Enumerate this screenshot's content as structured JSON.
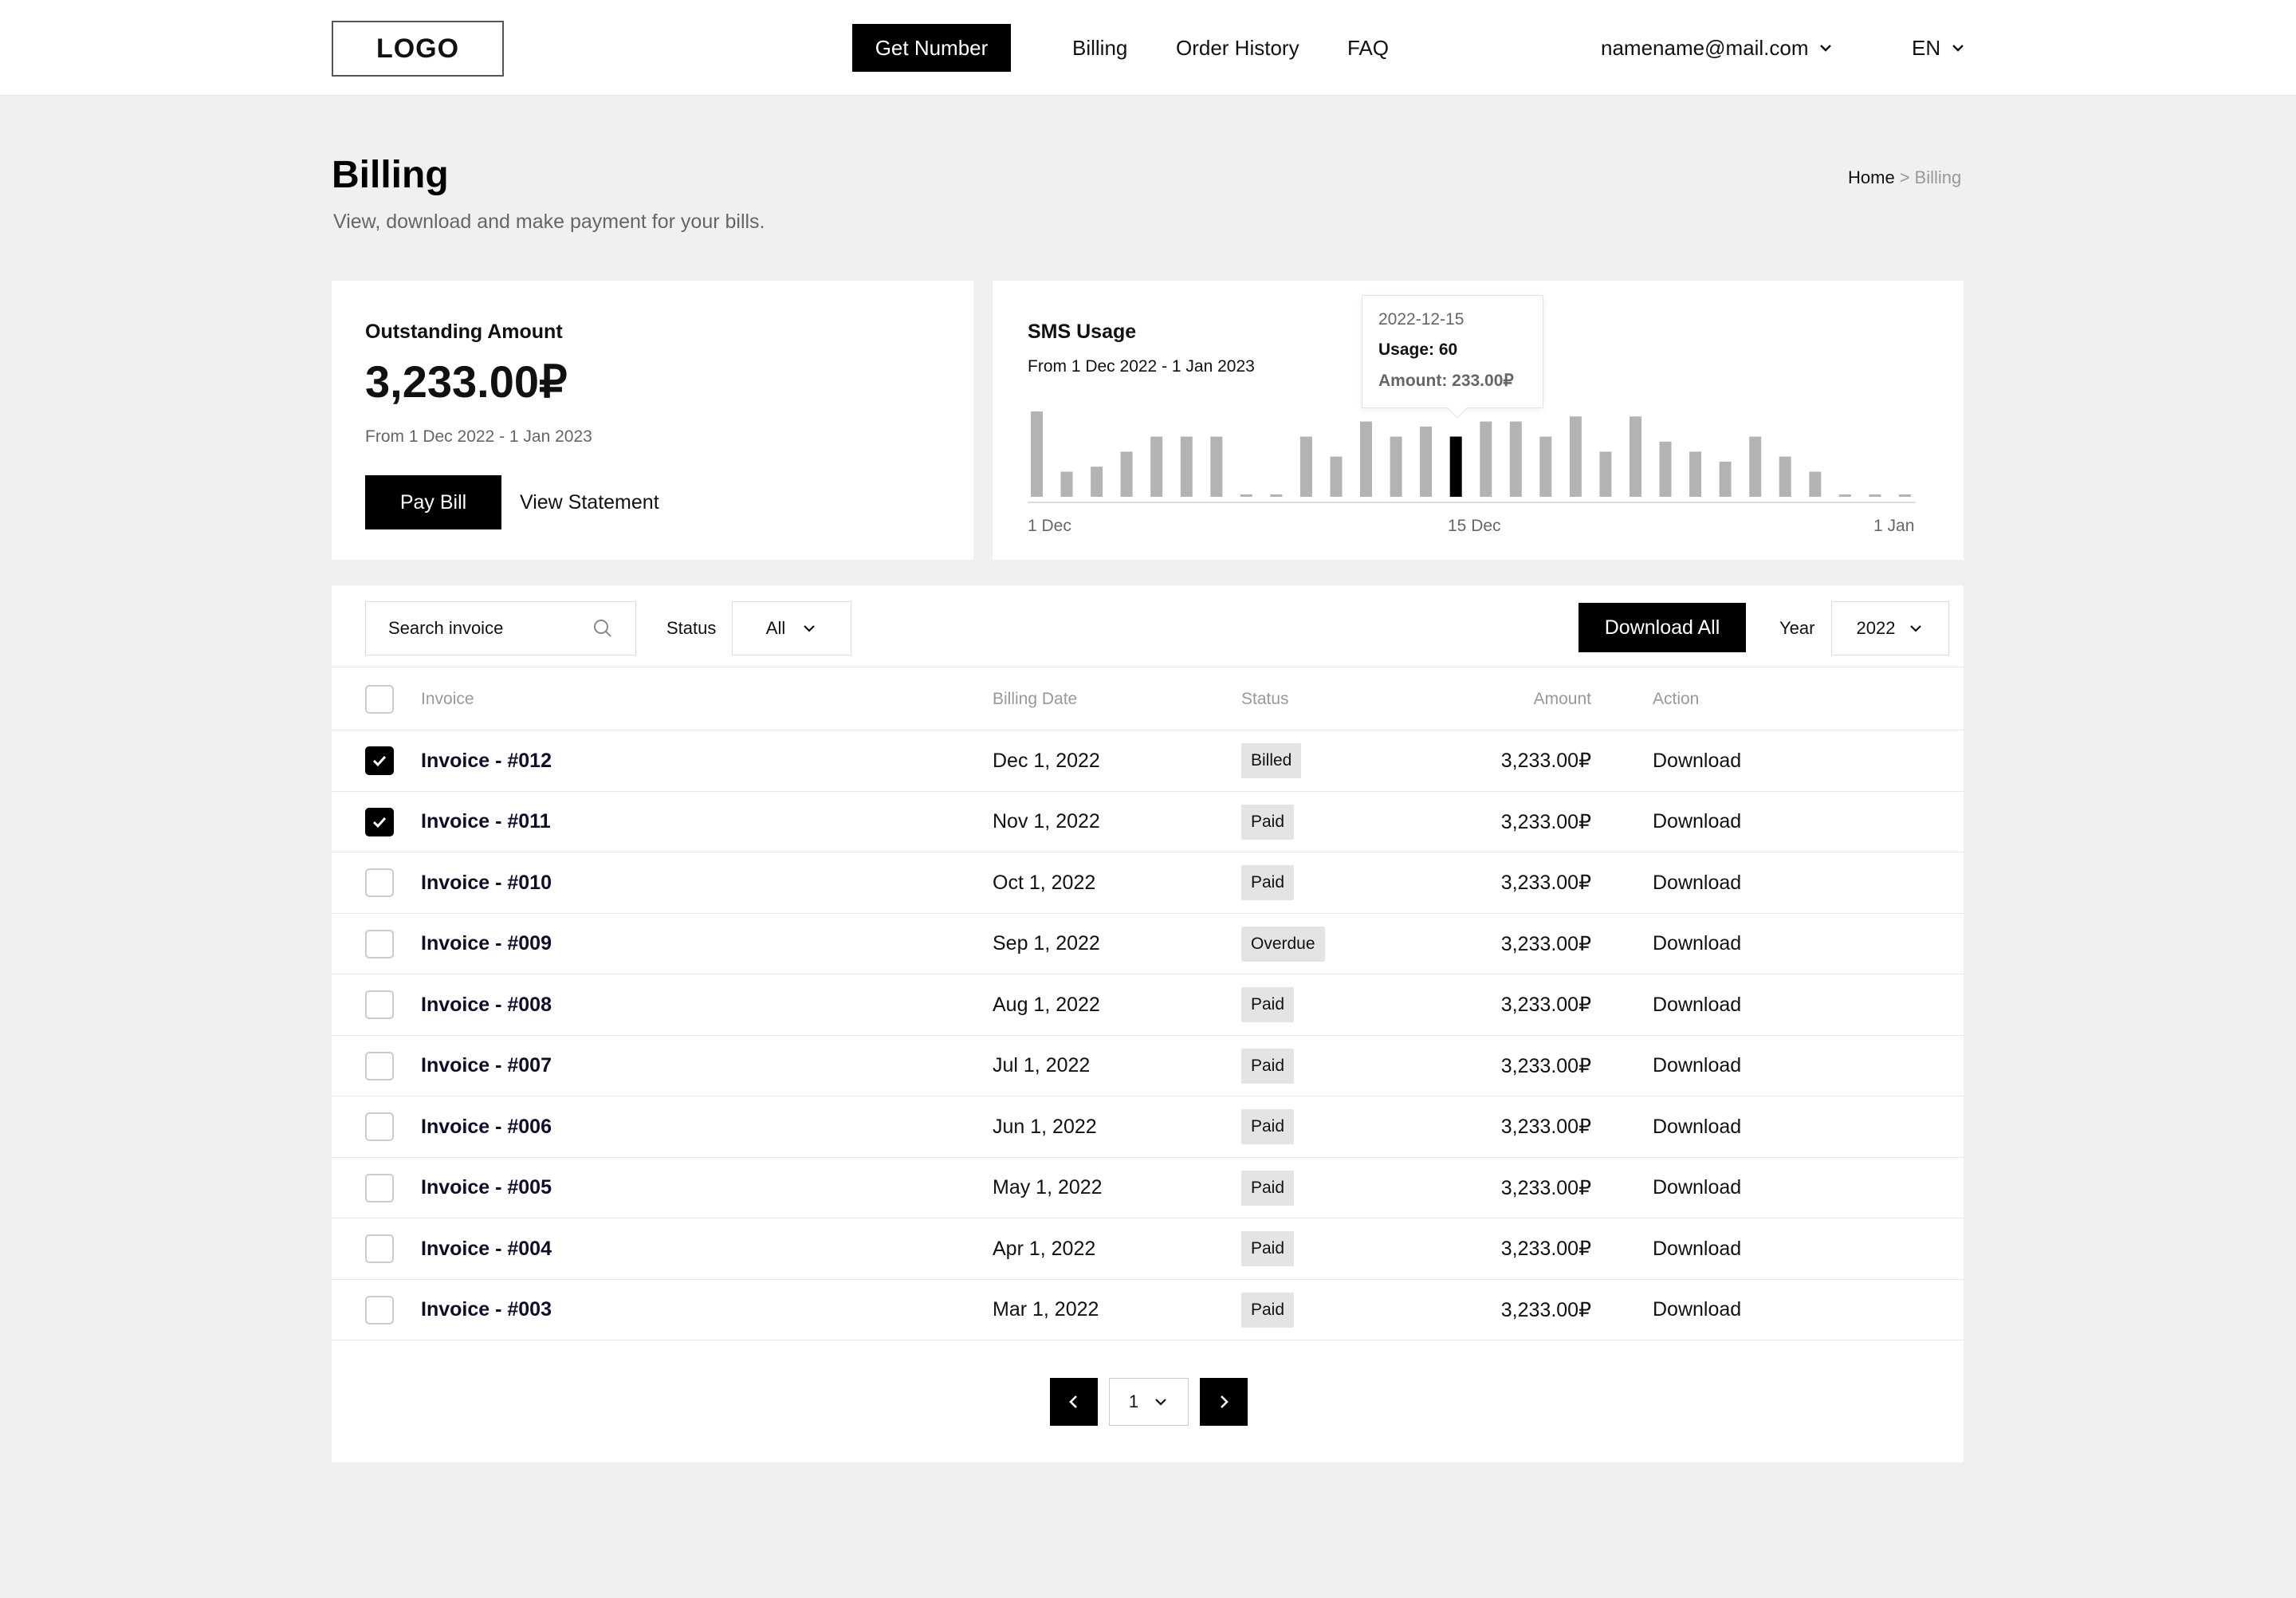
{
  "header": {
    "logo": "LOGO",
    "get_number": "Get Number",
    "nav": [
      "Billing",
      "Order History",
      "FAQ"
    ],
    "user_email": "namename@mail.com",
    "language": "EN"
  },
  "page": {
    "title": "Billing",
    "subtitle": "View, download and make payment for your bills.",
    "breadcrumb": {
      "home": "Home",
      "separator": ">",
      "current": "Billing"
    }
  },
  "outstanding": {
    "label": "Outstanding Amount",
    "amount": "3,233.00₽",
    "period": "From 1 Dec 2022 - 1 Jan 2023",
    "pay_button": "Pay Bill",
    "statement_link": "View Statement"
  },
  "sms_usage": {
    "title": "SMS Usage",
    "period": "From 1 Dec 2022 - 1 Jan 2023",
    "tooltip": {
      "date": "2022-12-15",
      "usage": "Usage: 60",
      "amount": "Amount: 233.00₽"
    },
    "x_labels": [
      "1 Dec",
      "15 Dec",
      "1 Jan"
    ]
  },
  "chart_data": {
    "type": "bar",
    "x": [
      "2022-12-01",
      "2022-12-02",
      "2022-12-03",
      "2022-12-04",
      "2022-12-05",
      "2022-12-06",
      "2022-12-07",
      "2022-12-08",
      "2022-12-09",
      "2022-12-10",
      "2022-12-11",
      "2022-12-12",
      "2022-12-13",
      "2022-12-14",
      "2022-12-15",
      "2022-12-16",
      "2022-12-17",
      "2022-12-18",
      "2022-12-19",
      "2022-12-20",
      "2022-12-21",
      "2022-12-22",
      "2022-12-23",
      "2022-12-24",
      "2022-12-25",
      "2022-12-26",
      "2022-12-27",
      "2022-12-28",
      "2022-12-29",
      "2022-12-30"
    ],
    "values": [
      85,
      25,
      30,
      45,
      60,
      60,
      60,
      0,
      0,
      60,
      40,
      75,
      60,
      70,
      60,
      75,
      75,
      60,
      80,
      45,
      80,
      55,
      45,
      35,
      60,
      40,
      25,
      0,
      0,
      0
    ],
    "highlight_index": 14,
    "x_tick_labels": [
      "1 Dec",
      "15 Dec",
      "1 Jan"
    ],
    "colors": {
      "bar": "#b3b3b3",
      "highlight": "#000000"
    },
    "grid": false
  },
  "table": {
    "search_placeholder": "Search invoice",
    "status_label": "Status",
    "status_value": "All",
    "download_all": "Download All",
    "year_label": "Year",
    "year_value": "2022",
    "columns": [
      "Invoice",
      "Billing Date",
      "Status",
      "Amount",
      "Action"
    ],
    "rows": [
      {
        "invoice": "Invoice - #012",
        "date": "Dec 1, 2022",
        "status": "Billed",
        "amount": "3,233.00₽",
        "action": "Download",
        "checked": true
      },
      {
        "invoice": "Invoice - #011",
        "date": "Nov 1, 2022",
        "status": "Paid",
        "amount": "3,233.00₽",
        "action": "Download",
        "checked": true
      },
      {
        "invoice": "Invoice - #010",
        "date": "Oct 1, 2022",
        "status": "Paid",
        "amount": "3,233.00₽",
        "action": "Download",
        "checked": false
      },
      {
        "invoice": "Invoice - #009",
        "date": "Sep 1, 2022",
        "status": "Overdue",
        "amount": "3,233.00₽",
        "action": "Download",
        "checked": false
      },
      {
        "invoice": "Invoice - #008",
        "date": "Aug 1, 2022",
        "status": "Paid",
        "amount": "3,233.00₽",
        "action": "Download",
        "checked": false
      },
      {
        "invoice": "Invoice - #007",
        "date": "Jul 1, 2022",
        "status": "Paid",
        "amount": "3,233.00₽",
        "action": "Download",
        "checked": false
      },
      {
        "invoice": "Invoice - #006",
        "date": "Jun 1, 2022",
        "status": "Paid",
        "amount": "3,233.00₽",
        "action": "Download",
        "checked": false
      },
      {
        "invoice": "Invoice - #005",
        "date": "May 1, 2022",
        "status": "Paid",
        "amount": "3,233.00₽",
        "action": "Download",
        "checked": false
      },
      {
        "invoice": "Invoice - #004",
        "date": "Apr 1, 2022",
        "status": "Paid",
        "amount": "3,233.00₽",
        "action": "Download",
        "checked": false
      },
      {
        "invoice": "Invoice - #003",
        "date": "Mar 1, 2022",
        "status": "Paid",
        "amount": "3,233.00₽",
        "action": "Download",
        "checked": false
      }
    ]
  },
  "pagination": {
    "current_page": "1"
  },
  "icons": {
    "search": "search-icon",
    "chevron_down": "chevron-down-icon",
    "chevron_left": "chevron-left-icon",
    "chevron_right": "chevron-right-icon",
    "check": "check-icon"
  }
}
